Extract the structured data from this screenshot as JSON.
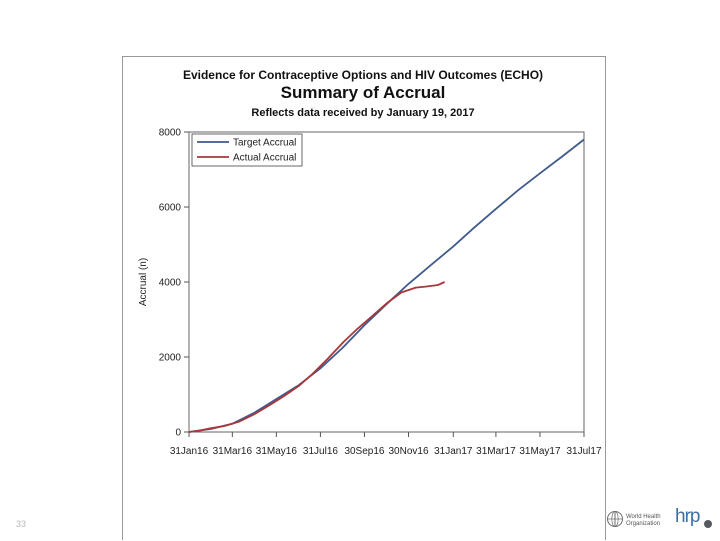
{
  "slide": {
    "number": "33"
  },
  "logos": {
    "who_line1": "World Health",
    "who_line2": "Organization",
    "hrp": "hrp",
    "who_icon": "who-emblem-icon"
  },
  "chart_data": {
    "type": "line",
    "title": "Evidence for Contraceptive Options and HIV Outcomes (ECHO)",
    "subtitle": "Summary of Accrual",
    "note": "Reflects data received by January 19, 2017",
    "xlabel": "",
    "ylabel": "Accrual (n)",
    "x_tick_labels": [
      "31Jan16",
      "31Mar16",
      "31May16",
      "31Jul16",
      "30Sep16",
      "30Nov16",
      "31Jan17",
      "31Mar17",
      "31May17",
      "31Jul17"
    ],
    "x_ticks": [
      "2016-01-31",
      "2016-03-31",
      "2016-05-31",
      "2016-07-31",
      "2016-09-30",
      "2016-11-30",
      "2017-01-31",
      "2017-03-31",
      "2017-05-31",
      "2017-07-31"
    ],
    "xlim": [
      "2016-01-31",
      "2017-07-31"
    ],
    "ylim": [
      0,
      8000
    ],
    "y_ticks": [
      0,
      2000,
      4000,
      6000,
      8000
    ],
    "grid": false,
    "legend_position": "top-left",
    "series": [
      {
        "name": "Target Accrual",
        "color": "#3f5a8c",
        "x": [
          "2016-01-31",
          "2016-03-01",
          "2016-03-31",
          "2016-05-01",
          "2016-05-31",
          "2016-07-01",
          "2016-07-31",
          "2016-08-31",
          "2016-09-30",
          "2016-10-31",
          "2016-11-30",
          "2016-12-31",
          "2017-01-31",
          "2017-03-01",
          "2017-03-31",
          "2017-05-01",
          "2017-05-31",
          "2017-07-01",
          "2017-07-31"
        ],
        "y": [
          0,
          80,
          220,
          520,
          880,
          1250,
          1700,
          2250,
          2850,
          3420,
          3950,
          4450,
          4950,
          5450,
          5950,
          6450,
          6900,
          7350,
          7800
        ]
      },
      {
        "name": "Actual Accrual",
        "color": "#a8373a",
        "x": [
          "2016-01-31",
          "2016-02-15",
          "2016-03-01",
          "2016-03-20",
          "2016-04-10",
          "2016-05-01",
          "2016-05-20",
          "2016-06-10",
          "2016-07-01",
          "2016-07-20",
          "2016-08-10",
          "2016-09-01",
          "2016-09-20",
          "2016-10-10",
          "2016-11-01",
          "2016-11-20",
          "2016-12-10",
          "2016-12-25",
          "2017-01-10",
          "2017-01-19"
        ],
        "y": [
          0,
          40,
          100,
          160,
          280,
          480,
          700,
          950,
          1230,
          1550,
          1950,
          2400,
          2750,
          3080,
          3450,
          3720,
          3850,
          3880,
          3920,
          4000
        ]
      }
    ]
  }
}
